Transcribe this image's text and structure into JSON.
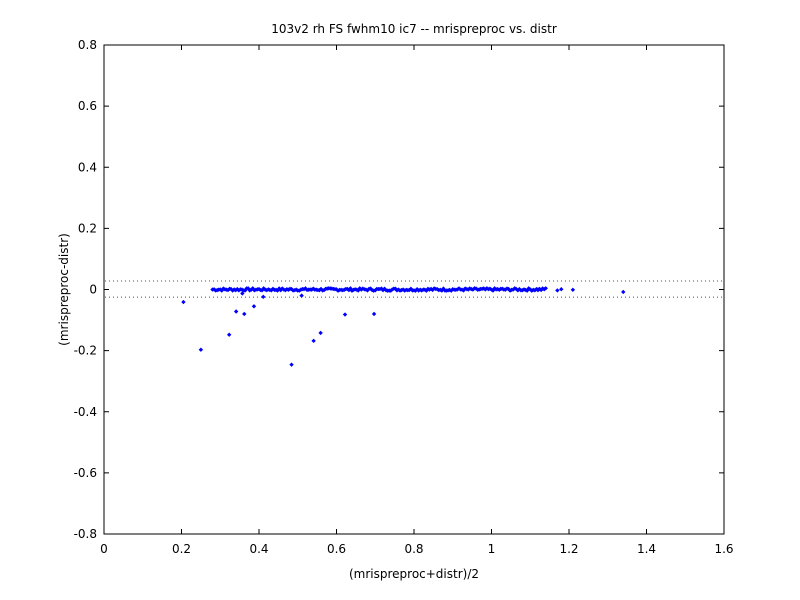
{
  "chart_data": {
    "type": "scatter",
    "title": "103v2 rh FS fwhm10 ic7 -- mrispreproc vs. distr",
    "xlabel": "(mrispreproc+distr)/2",
    "ylabel": "(mrispreproc-distr)",
    "xlim": [
      0,
      1.6
    ],
    "ylim": [
      -0.8,
      0.8
    ],
    "xticks": [
      "0",
      "0.2",
      "0.4",
      "0.6",
      "0.8",
      "1",
      "1.2",
      "1.4",
      "1.6"
    ],
    "yticks": [
      "-0.8",
      "-0.6",
      "-0.4",
      "-0.2",
      "0",
      "0.2",
      "0.4",
      "0.6",
      "0.8"
    ],
    "grid": false,
    "legend": "none",
    "marker_color": "#0000ff",
    "reference_line_color": "#ff0000",
    "reference_lines_y": [
      0.028,
      -0.025
    ],
    "dense_band": {
      "x_start": 0.28,
      "x_end": 1.14,
      "y_center": 0.0,
      "y_spread": 0.004
    },
    "points": [
      {
        "x": 0.205,
        "y": -0.041
      },
      {
        "x": 0.25,
        "y": -0.197
      },
      {
        "x": 0.323,
        "y": -0.148
      },
      {
        "x": 0.341,
        "y": -0.072
      },
      {
        "x": 0.357,
        "y": -0.013
      },
      {
        "x": 0.362,
        "y": -0.08
      },
      {
        "x": 0.387,
        "y": -0.055
      },
      {
        "x": 0.411,
        "y": -0.024
      },
      {
        "x": 0.484,
        "y": -0.246
      },
      {
        "x": 0.51,
        "y": -0.02
      },
      {
        "x": 0.541,
        "y": -0.168
      },
      {
        "x": 0.559,
        "y": -0.142
      },
      {
        "x": 0.622,
        "y": -0.082
      },
      {
        "x": 0.697,
        "y": -0.08
      },
      {
        "x": 1.12,
        "y": 0.0
      },
      {
        "x": 1.14,
        "y": 0.004
      },
      {
        "x": 1.17,
        "y": -0.003
      },
      {
        "x": 1.18,
        "y": 0.001
      },
      {
        "x": 1.21,
        "y": -0.001
      },
      {
        "x": 1.34,
        "y": -0.008
      }
    ]
  }
}
